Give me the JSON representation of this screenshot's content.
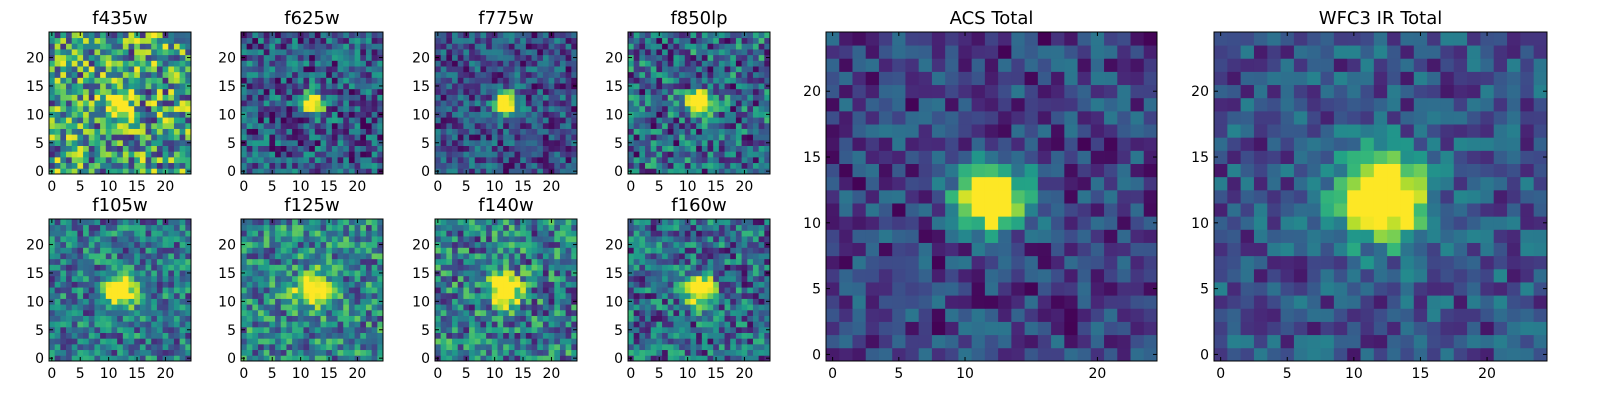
{
  "chart_data": [
    {
      "type": "heatmap",
      "title": "f435w",
      "grid_size": 25,
      "xlim": [
        -0.5,
        24.5
      ],
      "ylim": [
        -0.5,
        24.5
      ],
      "xticks": [
        0,
        5,
        10,
        15,
        20
      ],
      "yticks": [
        0,
        5,
        10,
        15,
        20
      ],
      "source_center": [
        12,
        12
      ],
      "source_sigma": 1.4,
      "source_peak": 0.65,
      "background_level": 0.55,
      "noise_level": 0.45,
      "colormap": "viridis"
    },
    {
      "type": "heatmap",
      "title": "f625w",
      "grid_size": 25,
      "xlim": [
        -0.5,
        24.5
      ],
      "ylim": [
        -0.5,
        24.5
      ],
      "xticks": [
        0,
        5,
        10,
        15,
        20
      ],
      "yticks": [
        0,
        5,
        10,
        15,
        20
      ],
      "source_center": [
        12,
        12
      ],
      "source_sigma": 1.3,
      "source_peak": 0.75,
      "background_level": 0.28,
      "noise_level": 0.3,
      "colormap": "viridis"
    },
    {
      "type": "heatmap",
      "title": "f775w",
      "grid_size": 25,
      "xlim": [
        -0.5,
        24.5
      ],
      "ylim": [
        -0.5,
        24.5
      ],
      "xticks": [
        0,
        5,
        10,
        15,
        20
      ],
      "yticks": [
        0,
        5,
        10,
        15,
        20
      ],
      "source_center": [
        12,
        12
      ],
      "source_sigma": 1.3,
      "source_peak": 0.78,
      "background_level": 0.25,
      "noise_level": 0.25,
      "colormap": "viridis"
    },
    {
      "type": "heatmap",
      "title": "f850lp",
      "grid_size": 25,
      "xlim": [
        -0.5,
        24.5
      ],
      "ylim": [
        -0.5,
        24.5
      ],
      "xticks": [
        0,
        5,
        10,
        15,
        20
      ],
      "yticks": [
        0,
        5,
        10,
        15,
        20
      ],
      "source_center": [
        12,
        12
      ],
      "source_sigma": 1.4,
      "source_peak": 0.7,
      "background_level": 0.35,
      "noise_level": 0.35,
      "colormap": "viridis"
    },
    {
      "type": "heatmap",
      "title": "f105w",
      "grid_size": 25,
      "xlim": [
        -0.5,
        24.5
      ],
      "ylim": [
        -0.5,
        24.5
      ],
      "xticks": [
        0,
        5,
        10,
        15,
        20
      ],
      "yticks": [
        0,
        5,
        10,
        15,
        20
      ],
      "source_center": [
        12,
        12
      ],
      "source_sigma": 1.9,
      "source_peak": 0.65,
      "background_level": 0.4,
      "noise_level": 0.3,
      "colormap": "viridis"
    },
    {
      "type": "heatmap",
      "title": "f125w",
      "grid_size": 25,
      "xlim": [
        -0.5,
        24.5
      ],
      "ylim": [
        -0.5,
        24.5
      ],
      "xticks": [
        0,
        5,
        10,
        15,
        20
      ],
      "yticks": [
        0,
        5,
        10,
        15,
        20
      ],
      "source_center": [
        12,
        12
      ],
      "source_sigma": 2.0,
      "source_peak": 0.55,
      "background_level": 0.45,
      "noise_level": 0.32,
      "colormap": "viridis"
    },
    {
      "type": "heatmap",
      "title": "f140w",
      "grid_size": 25,
      "xlim": [
        -0.5,
        24.5
      ],
      "ylim": [
        -0.5,
        24.5
      ],
      "xticks": [
        0,
        5,
        10,
        15,
        20
      ],
      "yticks": [
        0,
        5,
        10,
        15,
        20
      ],
      "source_center": [
        12,
        12
      ],
      "source_sigma": 1.9,
      "source_peak": 0.6,
      "background_level": 0.42,
      "noise_level": 0.35,
      "colormap": "viridis"
    },
    {
      "type": "heatmap",
      "title": "f160w",
      "grid_size": 25,
      "xlim": [
        -0.5,
        24.5
      ],
      "ylim": [
        -0.5,
        24.5
      ],
      "xticks": [
        0,
        5,
        10,
        15,
        20
      ],
      "yticks": [
        0,
        5,
        10,
        15,
        20
      ],
      "source_center": [
        12,
        12
      ],
      "source_sigma": 1.8,
      "source_peak": 0.65,
      "background_level": 0.35,
      "noise_level": 0.32,
      "colormap": "viridis"
    },
    {
      "type": "heatmap",
      "title": "ACS Total",
      "grid_size": 25,
      "xlim": [
        -0.5,
        24.5
      ],
      "ylim": [
        -0.5,
        24.5
      ],
      "xticks": [
        0,
        5,
        10,
        20
      ],
      "yticks": [
        0,
        5,
        10,
        15,
        20
      ],
      "source_center": [
        12,
        12
      ],
      "source_sigma": 1.7,
      "source_peak": 0.85,
      "background_level": 0.2,
      "noise_level": 0.2,
      "colormap": "viridis"
    },
    {
      "type": "heatmap",
      "title": "WFC3 IR Total",
      "grid_size": 25,
      "xlim": [
        -0.5,
        24.5
      ],
      "ylim": [
        -0.5,
        24.5
      ],
      "xticks": [
        0,
        5,
        10,
        15,
        20
      ],
      "yticks": [
        0,
        5,
        10,
        15,
        20
      ],
      "source_center": [
        12,
        12
      ],
      "source_sigma": 2.2,
      "source_peak": 0.8,
      "background_level": 0.26,
      "noise_level": 0.2,
      "colormap": "viridis"
    }
  ]
}
